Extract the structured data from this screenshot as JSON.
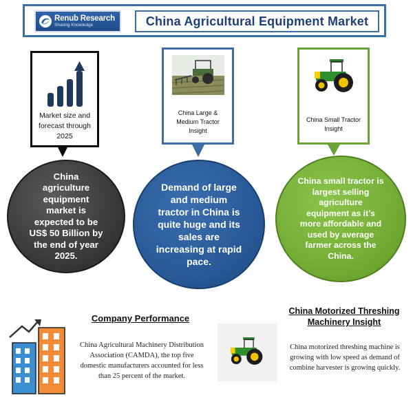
{
  "header": {
    "logo": {
      "name": "Renub Research",
      "tagline": "Sharing Knowledge"
    },
    "title": "China Agricultural Equipment Market"
  },
  "cards": [
    {
      "label": "Market size and forecast through 2025",
      "icon": "bar-chart-growth-icon",
      "accent": "#0d0d0d"
    },
    {
      "label": "China Large & Medium Tractor Insight",
      "image": "tractor-in-field",
      "accent": "#3b6ea5"
    },
    {
      "label": "China Small Tractor Insight",
      "image": "green-tractor",
      "accent": "#6aa438"
    }
  ],
  "circles": [
    {
      "text": "China agriculture equipment market is expected to be US$ 50 Billion by the end of year 2025.",
      "color": "#3a3a3a"
    },
    {
      "text": "Demand of large and medium tractor in China is quite huge and its sales are increasing at rapid pace.",
      "color": "#285a98"
    },
    {
      "text": "China small tractor is largest selling agriculture equipment as it’s more affordable and used by average farmer across the China.",
      "color": "#74ad36"
    }
  ],
  "company_performance": {
    "title": "Company Performance",
    "text": "China Agricultural Machinery Distribution Association (CAMDA), the top five domestic manufacturers accounted for less than 25 percent of the market.",
    "icon": "buildings-growth-icon"
  },
  "threshing": {
    "title": "China Motorized Threshing Machinery Insight",
    "text": "China motorized threshing machine is growing with low speed as demand of combine harvester is growing quickly.",
    "image": "green-tractor"
  }
}
